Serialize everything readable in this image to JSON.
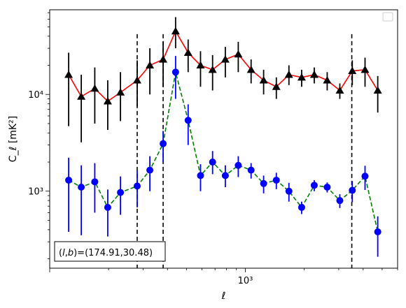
{
  "chart_data": {
    "type": "scatter",
    "xlabel": "ℓ",
    "ylabel": "C_ℓ  [mK²]",
    "x_scale": "log",
    "y_scale": "log",
    "xlim": [
      100,
      6000
    ],
    "ylim": [
      160,
      75000
    ],
    "x_tick_labels": [
      {
        "value": 1000,
        "label": "10³"
      }
    ],
    "y_tick_labels": [
      {
        "value": 1000,
        "label": "10³"
      },
      {
        "value": 10000,
        "label": "10⁴"
      }
    ],
    "annotation": "(l,b)=(174.91,30.48)",
    "annotation_parts": {
      "open": "(",
      "l": "l",
      "comma": ",",
      "b": "b",
      "rest": ")=(174.91,30.48)"
    },
    "legend_placement": "top-right",
    "vlines": [
      280,
      380,
      3500
    ],
    "vline_color": "#000000",
    "x": [
      125,
      145,
      170,
      198,
      230,
      280,
      325,
      380,
      440,
      510,
      590,
      680,
      790,
      920,
      1070,
      1240,
      1440,
      1670,
      1940,
      2250,
      2620,
      3040,
      3520,
      4090,
      4750
    ],
    "series": [
      {
        "color": "#ff0000",
        "marker": "triangle",
        "marker_color": "#000000",
        "errorbar_color": "#000000",
        "line_style": "solid",
        "values": [
          16000,
          9500,
          11500,
          8500,
          10500,
          14000,
          20000,
          23000,
          45000,
          27000,
          20000,
          18000,
          23000,
          26000,
          18000,
          14000,
          12000,
          16000,
          15000,
          16000,
          14000,
          11000,
          17500,
          18000,
          11000
        ],
        "err_low": [
          11300,
          6300,
          6500,
          4200,
          5200,
          6500,
          10000,
          11000,
          15000,
          10000,
          8000,
          7000,
          8000,
          9000,
          5000,
          4000,
          3000,
          3500,
          3000,
          3000,
          3000,
          2000,
          5000,
          6000,
          4500
        ],
        "err_high": [
          11000,
          6500,
          7500,
          5500,
          6500,
          8500,
          10000,
          12000,
          18000,
          10000,
          8000,
          7500,
          8000,
          9000,
          5000,
          4000,
          3000,
          4000,
          3000,
          3000,
          3000,
          2000,
          5000,
          6000,
          4500
        ]
      },
      {
        "color": "#008000",
        "marker": "circle",
        "marker_color": "#0000ff",
        "errorbar_color": "#0000ff",
        "line_style": "dashed",
        "values": [
          1300,
          1100,
          1250,
          680,
          970,
          1130,
          1650,
          3100,
          17000,
          5400,
          1450,
          2000,
          1450,
          1850,
          1650,
          1200,
          1300,
          1000,
          680,
          1150,
          1100,
          800,
          1020,
          1430,
          380
        ],
        "err_low": [
          920,
          750,
          650,
          340,
          400,
          450,
          650,
          1100,
          8000,
          2400,
          450,
          500,
          350,
          450,
          300,
          250,
          250,
          220,
          100,
          150,
          130,
          130,
          250,
          400,
          170
        ],
        "err_high": [
          920,
          750,
          700,
          360,
          450,
          500,
          650,
          1100,
          8000,
          2500,
          450,
          600,
          400,
          450,
          300,
          250,
          250,
          220,
          100,
          150,
          130,
          130,
          250,
          400,
          170
        ]
      }
    ]
  }
}
